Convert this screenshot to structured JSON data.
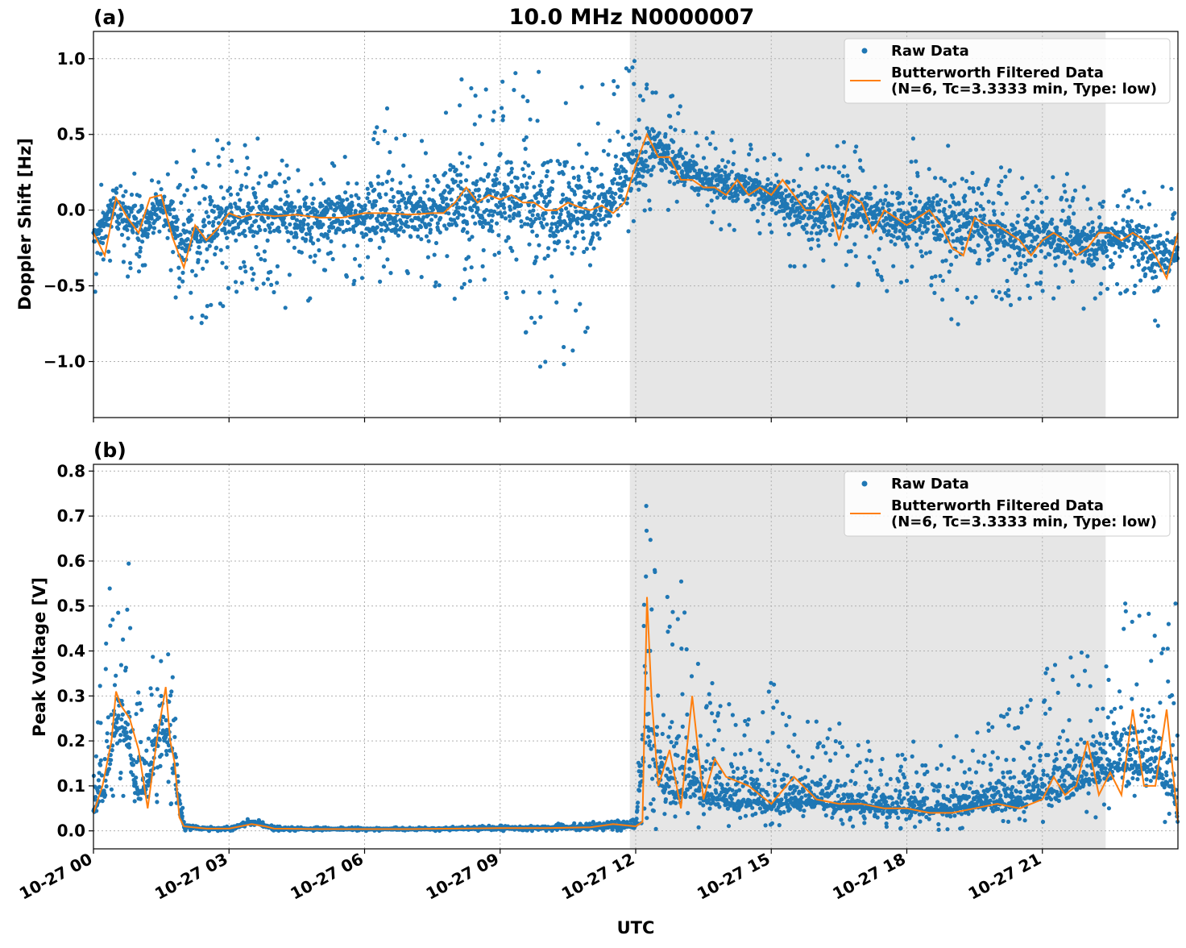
{
  "figure": {
    "title": "10.0 MHz N0000007",
    "xlabel": "UTC",
    "x_tick_labels": [
      "10-27 00",
      "10-27 03",
      "10-27 06",
      "10-27 09",
      "10-27 12",
      "10-27 15",
      "10-27 18",
      "10-27 21"
    ],
    "legend": {
      "raw_label": "Raw Data",
      "filtered_label_line1": "Butterworth Filtered Data",
      "filtered_label_line2": "(N=6, Tc=3.3333 min, Type: low)"
    },
    "colors": {
      "raw": "#1f77b4",
      "filtered": "#ff7f0e",
      "shade": "#e6e6e6"
    },
    "panel_a": {
      "label": "(a)",
      "ylabel": "Doppler Shift [Hz]",
      "y_tick_labels": [
        "1.0",
        "0.5",
        "0.0",
        "−0.5",
        "−1.0"
      ]
    },
    "panel_b": {
      "label": "(b)",
      "ylabel": "Peak Voltage [V]",
      "y_tick_labels": [
        "0.8",
        "0.7",
        "0.6",
        "0.5",
        "0.4",
        "0.3",
        "0.2",
        "0.1",
        "0.0"
      ]
    }
  },
  "chart_data": [
    {
      "type": "scatter",
      "panel": "(a)",
      "title": "10.0 MHz N0000007",
      "xlabel": "",
      "ylabel": "Doppler Shift [Hz]",
      "x_unit": "hours UTC on 10-27",
      "xlim": [
        0,
        24
      ],
      "ylim": [
        -1.37,
        1.18
      ],
      "yticks": [
        1.0,
        0.5,
        0.0,
        -0.5,
        -1.0
      ],
      "grid": true,
      "legend_position": "top-right",
      "shaded_x_range": [
        11.87,
        22.4
      ],
      "series": [
        {
          "name": "Raw Data",
          "style": "points",
          "x": [
            0,
            0.5,
            1.0,
            1.5,
            2.0,
            2.5,
            3.0,
            3.5,
            4.0,
            4.5,
            5.0,
            5.5,
            6.0,
            6.5,
            7.0,
            7.5,
            8.0,
            8.5,
            9.0,
            9.5,
            10.0,
            10.5,
            11.0,
            11.5,
            12.0,
            12.5,
            13.0,
            13.5,
            14.0,
            14.5,
            15.0,
            15.5,
            16.0,
            16.5,
            17.0,
            17.5,
            18.0,
            18.5,
            19.0,
            19.5,
            20.0,
            20.5,
            21.0,
            21.5,
            22.0,
            22.5,
            23.0,
            23.5,
            24.0
          ],
          "y_center": [
            -0.2,
            0.05,
            -0.15,
            0.05,
            -0.2,
            -0.15,
            -0.05,
            -0.05,
            -0.05,
            -0.05,
            -0.05,
            -0.03,
            -0.03,
            -0.03,
            -0.03,
            -0.03,
            0.05,
            0.05,
            0.05,
            0.08,
            0.0,
            0.03,
            0.0,
            0.05,
            0.3,
            0.4,
            0.3,
            0.2,
            0.15,
            0.15,
            0.1,
            0.05,
            -0.05,
            0.05,
            0.0,
            -0.05,
            -0.1,
            0.0,
            -0.1,
            -0.1,
            -0.15,
            -0.2,
            -0.15,
            -0.2,
            -0.2,
            -0.2,
            -0.15,
            -0.3,
            -0.3
          ],
          "y_low": [
            -0.7,
            -0.4,
            -0.5,
            -0.2,
            -0.8,
            -0.8,
            -0.6,
            -0.5,
            -0.6,
            -0.7,
            -0.6,
            -0.5,
            -0.5,
            -0.5,
            -0.5,
            -0.5,
            -0.6,
            -0.5,
            -0.6,
            -0.8,
            -1.22,
            -1.0,
            -0.8,
            -0.5,
            -0.1,
            0.0,
            -0.05,
            -0.1,
            -0.15,
            -0.2,
            -0.25,
            -0.4,
            -0.6,
            -0.5,
            -0.5,
            -0.55,
            -0.5,
            -0.55,
            -0.9,
            -0.6,
            -0.6,
            -0.65,
            -0.6,
            -0.6,
            -0.7,
            -0.6,
            -0.55,
            -0.95,
            -0.6
          ],
          "y_high": [
            0.1,
            0.3,
            0.3,
            0.2,
            0.45,
            0.6,
            0.45,
            0.55,
            0.3,
            0.4,
            0.35,
            0.35,
            0.4,
            0.75,
            0.5,
            0.55,
            0.93,
            0.8,
            0.85,
            1.05,
            0.88,
            0.9,
            0.88,
            0.85,
            1.02,
            0.85,
            0.7,
            0.45,
            0.65,
            0.45,
            0.4,
            0.5,
            0.4,
            0.45,
            0.45,
            0.35,
            0.55,
            0.35,
            0.5,
            0.3,
            0.3,
            0.25,
            0.2,
            0.25,
            0.2,
            0.2,
            0.15,
            0.2,
            0.15
          ]
        },
        {
          "name": "Butterworth Filtered Data\n(N=6, Tc=3.3333 min, Type: low)",
          "style": "line",
          "x": [
            0,
            0.25,
            0.5,
            0.75,
            1.0,
            1.25,
            1.5,
            1.75,
            2.0,
            2.25,
            2.5,
            2.75,
            3.0,
            3.25,
            3.5,
            3.75,
            4.0,
            4.5,
            5.0,
            5.5,
            6.0,
            6.5,
            7.0,
            7.5,
            7.75,
            8.0,
            8.25,
            8.5,
            8.75,
            9.0,
            9.25,
            9.5,
            9.75,
            10.0,
            10.25,
            10.5,
            10.75,
            11.0,
            11.25,
            11.5,
            11.75,
            12.0,
            12.25,
            12.5,
            12.75,
            13.0,
            13.25,
            13.5,
            13.75,
            14.0,
            14.25,
            14.5,
            14.75,
            15.0,
            15.25,
            15.5,
            15.75,
            16.0,
            16.25,
            16.5,
            16.75,
            17.0,
            17.25,
            17.5,
            17.75,
            18.0,
            18.25,
            18.5,
            18.75,
            19.0,
            19.25,
            19.5,
            19.75,
            20.0,
            20.25,
            20.5,
            20.75,
            21.0,
            21.25,
            21.5,
            21.75,
            22.0,
            22.25,
            22.5,
            22.75,
            23.0,
            23.25,
            23.5,
            23.75,
            24.0
          ],
          "y": [
            -0.15,
            -0.3,
            0.08,
            -0.05,
            -0.15,
            0.08,
            0.1,
            -0.18,
            -0.38,
            -0.1,
            -0.2,
            -0.12,
            -0.02,
            -0.05,
            -0.03,
            -0.03,
            -0.04,
            -0.03,
            -0.05,
            -0.05,
            -0.02,
            -0.02,
            -0.03,
            -0.02,
            -0.02,
            0.05,
            0.15,
            0.05,
            0.1,
            0.07,
            0.1,
            0.05,
            0.05,
            0.0,
            0.0,
            0.05,
            0.02,
            0.0,
            0.03,
            -0.02,
            0.05,
            0.3,
            0.5,
            0.35,
            0.35,
            0.2,
            0.2,
            0.15,
            0.15,
            0.1,
            0.2,
            0.1,
            0.15,
            0.1,
            0.2,
            0.1,
            0.0,
            0.0,
            0.1,
            -0.2,
            0.1,
            0.05,
            -0.15,
            0.0,
            -0.05,
            -0.1,
            -0.05,
            0.0,
            -0.1,
            -0.25,
            -0.3,
            -0.05,
            -0.1,
            -0.1,
            -0.15,
            -0.2,
            -0.3,
            -0.2,
            -0.15,
            -0.2,
            -0.3,
            -0.25,
            -0.15,
            -0.15,
            -0.2,
            -0.15,
            -0.2,
            -0.3,
            -0.45,
            -0.15
          ]
        }
      ]
    },
    {
      "type": "scatter",
      "panel": "(b)",
      "title": "",
      "xlabel": "UTC",
      "ylabel": "Peak Voltage [V]",
      "x_unit": "hours UTC on 10-27",
      "xlim": [
        0,
        24
      ],
      "ylim": [
        -0.04,
        0.815
      ],
      "yticks": [
        0.8,
        0.7,
        0.6,
        0.5,
        0.4,
        0.3,
        0.2,
        0.1,
        0.0
      ],
      "grid": true,
      "legend_position": "top-right",
      "shaded_x_range": [
        11.87,
        22.4
      ],
      "series": [
        {
          "name": "Raw Data",
          "style": "points",
          "x": [
            0,
            0.25,
            0.5,
            0.75,
            1.0,
            1.25,
            1.5,
            1.75,
            2.0,
            2.5,
            3.0,
            3.5,
            4.0,
            5.0,
            6.0,
            7.0,
            8.0,
            9.0,
            10.0,
            11.0,
            11.5,
            11.87,
            12.0,
            12.25,
            12.5,
            12.75,
            13.0,
            13.25,
            13.5,
            14.0,
            14.5,
            15.0,
            15.5,
            16.0,
            16.5,
            17.0,
            17.5,
            18.0,
            18.5,
            19.0,
            19.5,
            20.0,
            20.5,
            21.0,
            21.5,
            22.0,
            22.5,
            23.0,
            23.5,
            23.9,
            24.0
          ],
          "y_center": [
            0.05,
            0.1,
            0.25,
            0.22,
            0.08,
            0.12,
            0.25,
            0.15,
            0.01,
            0.005,
            0.005,
            0.02,
            0.005,
            0.004,
            0.004,
            0.004,
            0.005,
            0.006,
            0.007,
            0.008,
            0.01,
            0.01,
            0.01,
            0.25,
            0.12,
            0.1,
            0.09,
            0.12,
            0.08,
            0.07,
            0.07,
            0.06,
            0.07,
            0.07,
            0.06,
            0.06,
            0.05,
            0.05,
            0.05,
            0.05,
            0.06,
            0.06,
            0.07,
            0.09,
            0.1,
            0.12,
            0.15,
            0.15,
            0.15,
            0.1,
            0.02
          ],
          "y_low": [
            0.01,
            0.02,
            0.05,
            0.05,
            0.02,
            0.03,
            0.05,
            0.05,
            0.0,
            0.0,
            0.0,
            0.005,
            0.0,
            0.0,
            0.0,
            0.0,
            0.0,
            0.0,
            0.0,
            0.0,
            0.0,
            0.0,
            0.0,
            0.01,
            0.0,
            0.0,
            0.0,
            0.0,
            0.0,
            0.0,
            0.0,
            0.0,
            0.0,
            0.0,
            0.0,
            0.0,
            0.0,
            0.0,
            0.0,
            0.0,
            0.0,
            0.0,
            0.01,
            0.01,
            0.01,
            0.02,
            0.03,
            0.02,
            0.02,
            0.01,
            0.005
          ],
          "y_high": [
            0.15,
            0.5,
            0.64,
            0.69,
            0.3,
            0.45,
            0.55,
            0.4,
            0.02,
            0.01,
            0.01,
            0.03,
            0.01,
            0.008,
            0.008,
            0.008,
            0.01,
            0.012,
            0.015,
            0.02,
            0.025,
            0.025,
            0.03,
            0.78,
            0.5,
            0.55,
            0.6,
            0.4,
            0.35,
            0.3,
            0.3,
            0.35,
            0.25,
            0.25,
            0.25,
            0.2,
            0.2,
            0.2,
            0.2,
            0.22,
            0.22,
            0.25,
            0.3,
            0.35,
            0.4,
            0.4,
            0.45,
            0.55,
            0.5,
            0.76,
            0.5
          ]
        },
        {
          "name": "Butterworth Filtered Data\n(N=6, Tc=3.3333 min, Type: low)",
          "style": "line",
          "x": [
            0,
            0.2,
            0.4,
            0.5,
            0.6,
            0.8,
            1.0,
            1.2,
            1.4,
            1.6,
            1.7,
            1.8,
            1.9,
            2.0,
            2.5,
            3.0,
            3.5,
            3.8,
            4.0,
            5.0,
            6.0,
            7.0,
            8.0,
            9.0,
            10.0,
            11.0,
            11.5,
            12.0,
            12.15,
            12.25,
            12.35,
            12.5,
            12.75,
            13.0,
            13.25,
            13.5,
            13.75,
            14.0,
            14.5,
            15.0,
            15.5,
            16.0,
            16.5,
            17.0,
            17.5,
            18.0,
            18.5,
            19.0,
            19.5,
            20.0,
            20.5,
            21.0,
            21.25,
            21.5,
            21.75,
            22.0,
            22.25,
            22.5,
            22.75,
            23.0,
            23.25,
            23.5,
            23.75,
            24.0
          ],
          "y": [
            0.04,
            0.1,
            0.2,
            0.31,
            0.28,
            0.25,
            0.18,
            0.05,
            0.2,
            0.32,
            0.2,
            0.15,
            0.03,
            0.01,
            0.005,
            0.005,
            0.015,
            0.01,
            0.005,
            0.004,
            0.004,
            0.004,
            0.005,
            0.006,
            0.006,
            0.008,
            0.015,
            0.01,
            0.02,
            0.52,
            0.3,
            0.1,
            0.18,
            0.05,
            0.3,
            0.07,
            0.16,
            0.12,
            0.1,
            0.06,
            0.12,
            0.07,
            0.06,
            0.06,
            0.05,
            0.05,
            0.04,
            0.04,
            0.05,
            0.06,
            0.05,
            0.07,
            0.12,
            0.08,
            0.1,
            0.2,
            0.08,
            0.13,
            0.08,
            0.27,
            0.1,
            0.1,
            0.27,
            0.02
          ]
        }
      ]
    }
  ]
}
